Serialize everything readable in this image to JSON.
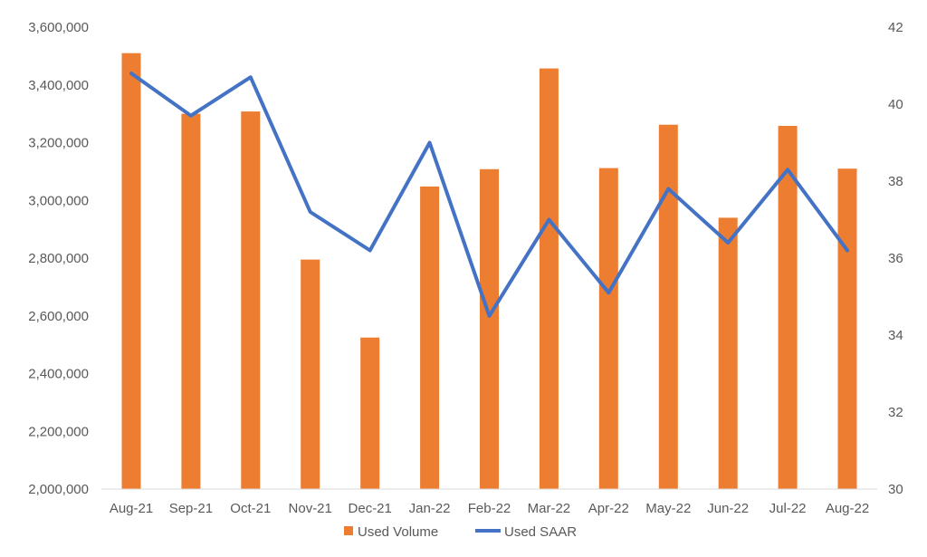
{
  "chart_data": {
    "type": "bar",
    "title": "",
    "categories": [
      "Aug-21",
      "Sep-21",
      "Oct-21",
      "Nov-21",
      "Dec-21",
      "Jan-22",
      "Feb-22",
      "Mar-22",
      "Apr-22",
      "May-22",
      "Jun-22",
      "Jul-22",
      "Aug-22"
    ],
    "series": [
      {
        "name": "Used Volume",
        "type": "bar",
        "axis": "left",
        "color": "#ED7D31",
        "values": [
          3510000,
          3300000,
          3308000,
          2795000,
          2525000,
          3048000,
          3108000,
          3457000,
          3112000,
          3262000,
          2940000,
          3258000,
          3110000
        ]
      },
      {
        "name": "Used SAAR",
        "type": "line",
        "axis": "right",
        "color": "#4472C4",
        "values": [
          40.8,
          39.7,
          40.7,
          37.2,
          36.2,
          39.0,
          34.5,
          37.0,
          35.1,
          37.8,
          36.4,
          38.3,
          36.2
        ]
      }
    ],
    "y_left": {
      "ylim": [
        2000000,
        3600000
      ],
      "ticks": [
        2000000,
        2200000,
        2400000,
        2600000,
        2800000,
        3000000,
        3200000,
        3400000,
        3600000
      ],
      "tick_labels": [
        "2,000,000",
        "2,200,000",
        "2,400,000",
        "2,600,000",
        "2,800,000",
        "3,000,000",
        "3,200,000",
        "3,400,000",
        "3,600,000"
      ]
    },
    "y_right": {
      "ylim": [
        30,
        42
      ],
      "ticks": [
        30,
        32,
        34,
        36,
        38,
        40,
        42
      ],
      "tick_labels": [
        "30",
        "32",
        "34",
        "36",
        "38",
        "40",
        "42"
      ]
    },
    "grid": false,
    "legend": {
      "position": "bottom",
      "entries": [
        "Used Volume",
        "Used SAAR"
      ]
    }
  }
}
